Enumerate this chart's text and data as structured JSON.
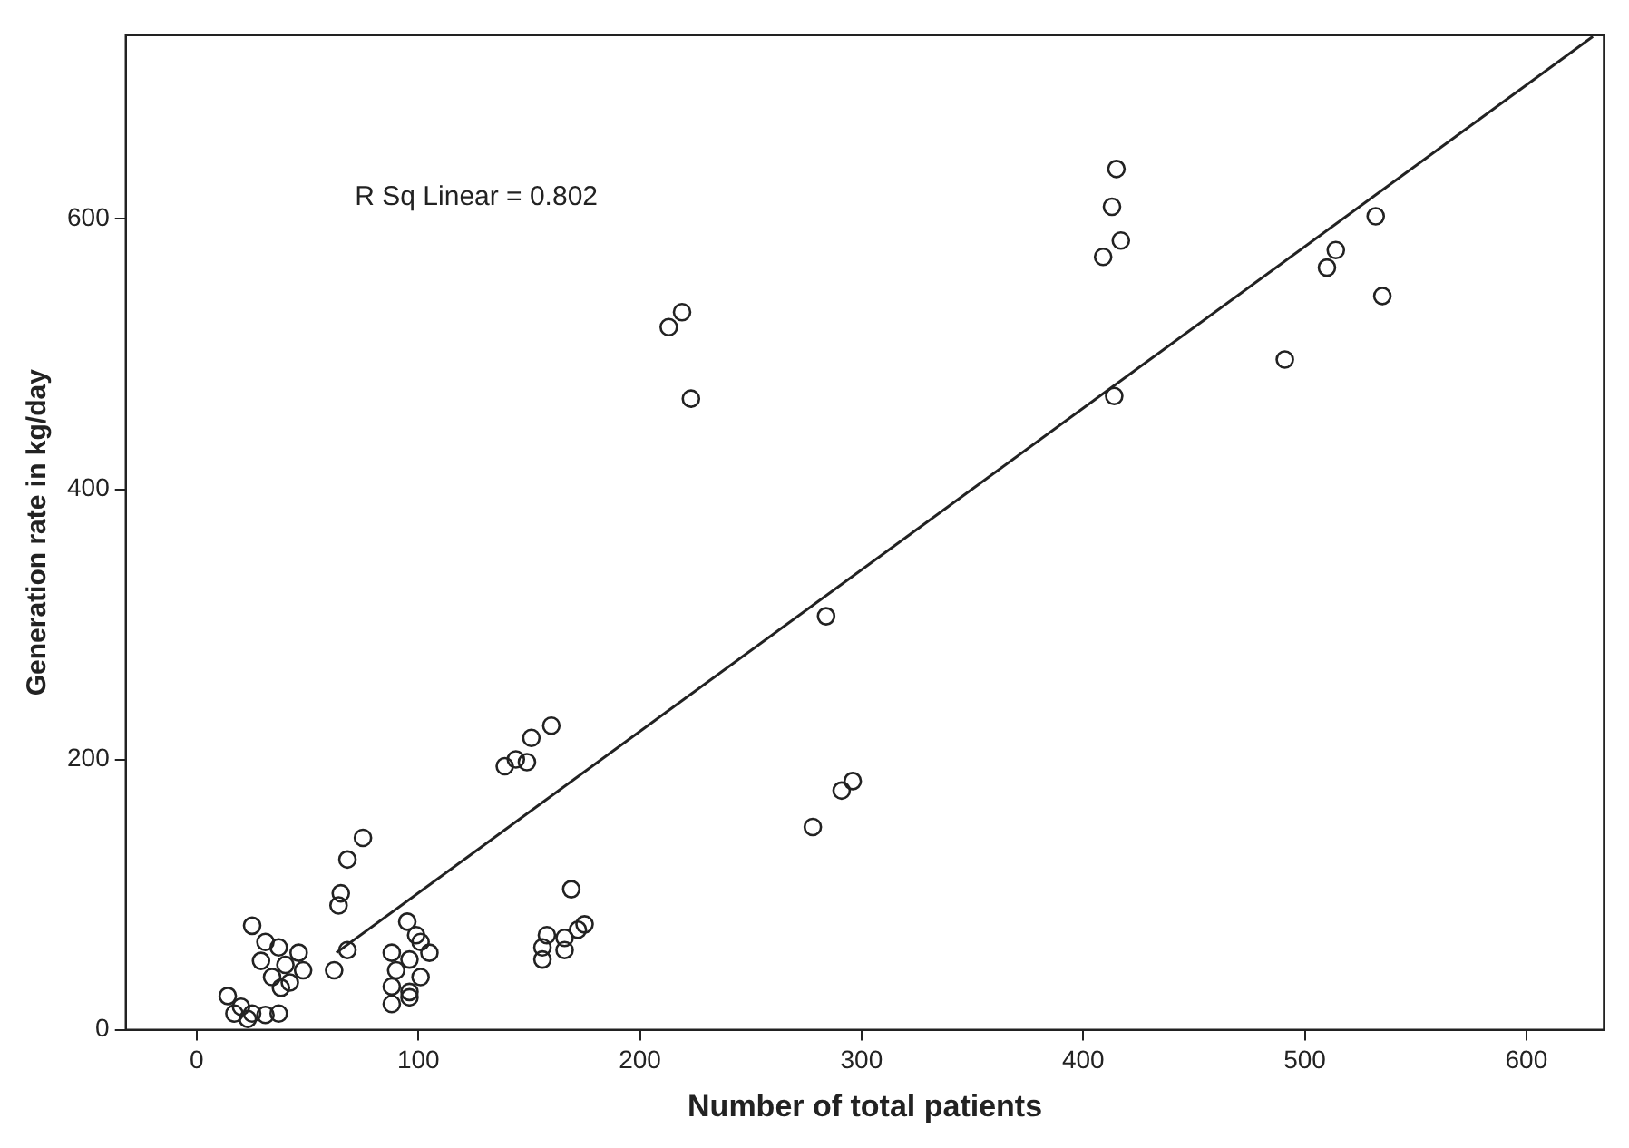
{
  "chart_data": {
    "type": "scatter",
    "xlabel": "Number of total patients",
    "ylabel": "Generation rate in kg/day",
    "annotations": [
      "R Sq Linear = 0.802"
    ],
    "xlim": [
      -32,
      635
    ],
    "ylim": [
      0,
      736
    ],
    "xticks": [
      0,
      100,
      200,
      300,
      400,
      500,
      600
    ],
    "yticks": [
      0,
      200,
      400,
      600
    ],
    "grid": false,
    "legend": false,
    "series": [
      {
        "type": "scatter",
        "marker": "circle",
        "color": "#222222",
        "x": [
          415,
          413,
          417,
          409,
          532,
          514,
          510,
          535,
          491,
          414,
          284,
          219,
          213,
          223,
          296,
          291,
          278,
          75,
          68,
          65,
          64,
          25,
          31,
          37,
          46,
          29,
          40,
          48,
          34,
          42,
          38,
          62,
          68,
          14,
          20,
          25,
          31,
          17,
          37,
          23,
          95,
          99,
          101,
          88,
          96,
          105,
          90,
          101,
          88,
          96,
          88,
          96,
          169,
          175,
          172,
          158,
          166,
          156,
          166,
          156,
          160,
          151,
          144,
          139,
          149
        ],
        "values": [
          637,
          609,
          584,
          572,
          602,
          577,
          564,
          543,
          496,
          469,
          306,
          531,
          520,
          467,
          184,
          177,
          150,
          142,
          126,
          101,
          92,
          77,
          65,
          61,
          57,
          51,
          48,
          44,
          39,
          35,
          31,
          44,
          59,
          25,
          17,
          12,
          11,
          12,
          12,
          8,
          80,
          70,
          65,
          57,
          52,
          57,
          44,
          39,
          32,
          28,
          19,
          24,
          104,
          78,
          74,
          70,
          68,
          61,
          59,
          52,
          225,
          216,
          200,
          195,
          198
        ]
      },
      {
        "type": "line",
        "marker": "none",
        "line_style": "solid",
        "color": "#222222",
        "x": [
          63,
          630
        ],
        "values": [
          57,
          735
        ]
      }
    ]
  }
}
